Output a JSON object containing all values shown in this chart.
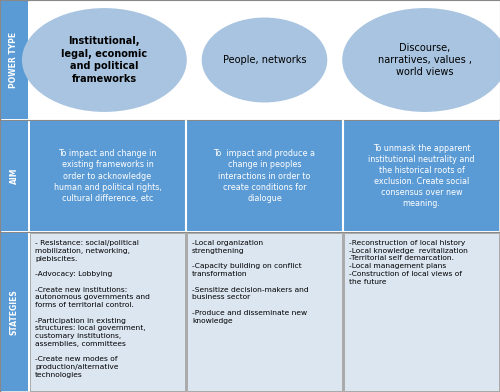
{
  "background_color": "#ffffff",
  "ellipse_color": "#a8c4e0",
  "aim_box_color": "#5b9bd5",
  "strategies_box_color": "#dce6f1",
  "label_box_color": "#5b9bd5",
  "label_text_color": "#ffffff",
  "ellipse_texts": [
    "Institutional,\nlegal, economic\nand political\nframeworks",
    "People, networks",
    "Discourse,\nnarratives, values ,\nworld views"
  ],
  "row_labels": [
    "POWER TYPE",
    "AIM",
    "STATEGIES"
  ],
  "aim_texts": [
    "To impact and change in\nexisting frameworks in\norder to acknowledge\nhuman and political rights,\ncultural difference, etc",
    "To  impact and produce a\nchange in peoples\ninteractions in order to\ncreate conditions for\ndialogue",
    "To unmask the apparent\ninstitutional neutrality and\nthe historical roots of\nexclusion. Create social\nconsensus over new\nmeaning."
  ],
  "strategies_texts": [
    "- Resistance: social/political\nmobilization, networking,\nplebiscites.\n\n-Advocacy: Lobbying\n\n-Create new institutions:\nautonomous governments and\nforms of territorial control.\n\n-Participation in existing\nstructures: local government,\ncustomary institutions,\nassemblies, committees\n\n-Create new modes of\nproduction/alternative\ntechnologies",
    "-Local organization\nstrengthening\n\n-Capacity building on conflict\ntransformation\n\n-Sensitize decision-makers and\nbusiness sector\n\n-Produce and disseminate new\nknowledge",
    "-Reconstruction of local history\n-Local knowledge  revitalization\n-Territorial self demarcation.\n-Local management plans\n-Construction of local views of\nthe future"
  ]
}
